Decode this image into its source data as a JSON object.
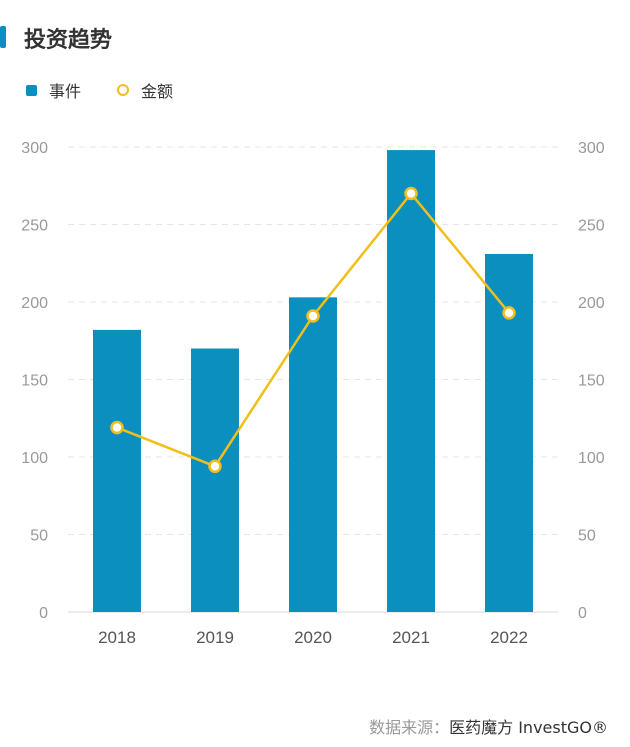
{
  "title": "投资趋势",
  "legend": {
    "bar_label": "事件",
    "line_label": "金额"
  },
  "source": {
    "prefix": "数据来源：",
    "brand": "医药魔方 InvestGO®"
  },
  "colors": {
    "bar": "#0b8fbf",
    "line": "#f2be1a",
    "grid": "#e3e6ea",
    "tick": "#999999",
    "xtick": "#555555"
  },
  "chart_data": {
    "type": "bar",
    "categories": [
      "2018",
      "2019",
      "2020",
      "2021",
      "2022"
    ],
    "series": [
      {
        "name": "事件",
        "type": "bar",
        "axis": "left",
        "values": [
          182,
          170,
          203,
          298,
          231
        ]
      },
      {
        "name": "金额",
        "type": "line",
        "axis": "right",
        "values": [
          119,
          94,
          191,
          270,
          193
        ]
      }
    ],
    "ylim": [
      0,
      300
    ],
    "y2lim": [
      0,
      300
    ],
    "yticks": [
      0,
      50,
      100,
      150,
      200,
      250,
      300
    ],
    "y2ticks": [
      0,
      50,
      100,
      150,
      200,
      250,
      300
    ],
    "grid": true,
    "legend_position": "top-left"
  }
}
